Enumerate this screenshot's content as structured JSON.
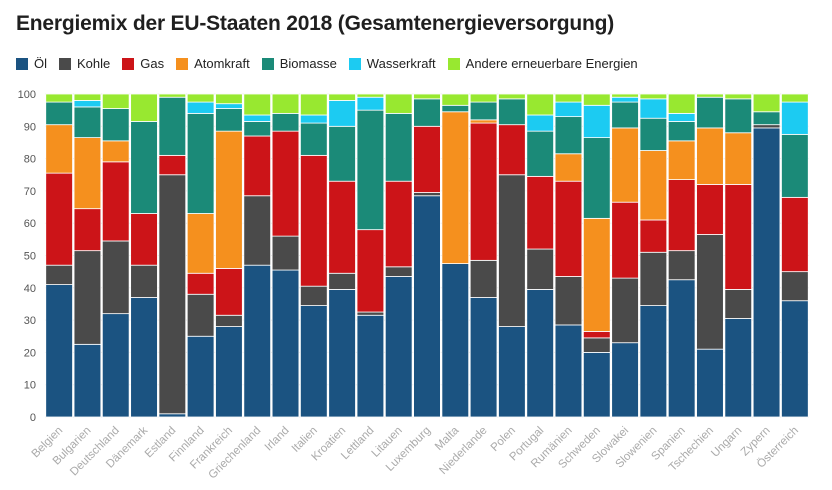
{
  "chart_data": {
    "type": "bar",
    "stacked": true,
    "title": "Energiemix der EU-Staaten 2018 (Gesamtenergieversorgung)",
    "xlabel": "",
    "ylabel": "",
    "ylim": [
      0,
      100
    ],
    "yticks": [
      0,
      10,
      20,
      30,
      40,
      50,
      60,
      70,
      80,
      90,
      100
    ],
    "grid": true,
    "legend_position": "top-left",
    "categories": [
      "Belgien",
      "Bulgarien",
      "Deutschland",
      "Dänemark",
      "Estland",
      "Finnland",
      "Frankreich",
      "Griechenland",
      "Irland",
      "Italien",
      "Kroatien",
      "Lettland",
      "Litauen",
      "Luxemburg",
      "Malta",
      "Niederlande",
      "Polen",
      "Portugal",
      "Rumänien",
      "Schweden",
      "Slowakei",
      "Slowenien",
      "Spanien",
      "Tschechien",
      "Ungarn",
      "Zypern",
      "Österreich"
    ],
    "series": [
      {
        "name": "Öl",
        "color": "#1b5381",
        "values": [
          41,
          22.5,
          32,
          37,
          1,
          25,
          28,
          47,
          45.5,
          34.5,
          39.5,
          31.5,
          43.5,
          68.5,
          47.5,
          37,
          28,
          39.5,
          28.5,
          20,
          23,
          34.5,
          42.5,
          21,
          30.5,
          89.5,
          36
        ]
      },
      {
        "name": "Kohle",
        "color": "#4a4a4a",
        "values": [
          6,
          29,
          22.5,
          10,
          74,
          13,
          3.5,
          21.5,
          10.5,
          6,
          5,
          1,
          3,
          1,
          0,
          11.5,
          47,
          12.5,
          15,
          4.5,
          20,
          16.5,
          9,
          35.5,
          9,
          1,
          9
        ]
      },
      {
        "name": "Gas",
        "color": "#cc1418",
        "values": [
          28.5,
          13,
          24.5,
          16,
          6,
          6.5,
          14.5,
          18.5,
          32.5,
          40.5,
          28.5,
          25.5,
          26.5,
          20.5,
          0,
          42.5,
          15.5,
          22.5,
          29.5,
          2,
          23.5,
          10,
          22,
          15.5,
          32.5,
          0,
          23
        ]
      },
      {
        "name": "Atomkraft",
        "color": "#f5901e",
        "values": [
          15,
          22,
          6.5,
          0,
          0,
          18.5,
          42.5,
          0,
          0,
          0,
          0,
          0,
          0,
          0,
          47,
          1,
          0,
          0,
          8.5,
          35,
          23,
          21.5,
          12,
          17.5,
          16,
          0,
          0
        ]
      },
      {
        "name": "Biomasse",
        "color": "#1b8a78",
        "values": [
          7,
          9.5,
          10,
          28.5,
          18,
          31,
          7,
          4.5,
          5.5,
          10,
          17,
          37,
          21,
          8.5,
          2,
          5.5,
          8,
          14,
          11.5,
          25,
          8,
          10,
          6,
          9.5,
          10.5,
          4,
          19.5
        ]
      },
      {
        "name": "Wasserkraft",
        "color": "#1ccbf2",
        "values": [
          0,
          2,
          0,
          0,
          0,
          3.5,
          1.5,
          2,
          0,
          2.5,
          8,
          4,
          0,
          0,
          0,
          0,
          0,
          5,
          4.5,
          10,
          1.5,
          6,
          2.5,
          0,
          0,
          0,
          10
        ]
      },
      {
        "name": "Andere erneuerbare Energien",
        "color": "#98e830",
        "values": [
          2.5,
          2,
          4.5,
          8.5,
          1,
          2.5,
          3,
          6.5,
          6,
          6.5,
          2,
          1,
          6,
          1.5,
          3.5,
          2.5,
          1.5,
          6.5,
          2.5,
          3.5,
          1,
          1.5,
          6,
          1,
          1.5,
          5.5,
          2.5
        ]
      }
    ]
  }
}
